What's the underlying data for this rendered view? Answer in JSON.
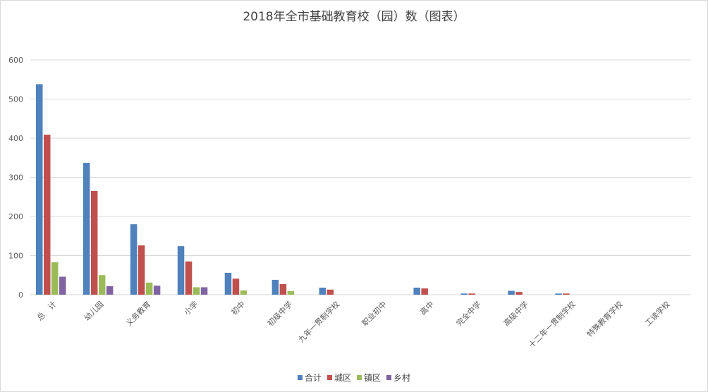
{
  "chart_data": {
    "type": "bar",
    "title": "2018年全市基础教育校（园）数（图表）",
    "xlabel": "",
    "ylabel": "",
    "ylim": [
      0,
      600
    ],
    "yticks": [
      0,
      100,
      200,
      300,
      400,
      500,
      600
    ],
    "grid": true,
    "legend_position": "bottom",
    "categories": [
      "总　计",
      "幼儿园",
      "义务教育",
      "小学",
      "初中",
      "初级中学",
      "九年一贯制学校",
      "职业初中",
      "高中",
      "完全中学",
      "高级中学",
      "十二年一贯制学校",
      "特殊教育学校",
      "工读学校"
    ],
    "series": [
      {
        "name": "合计",
        "color": "#4f81bd",
        "values": [
          538,
          337,
          180,
          124,
          56,
          38,
          18,
          0,
          18,
          3,
          10,
          3,
          0,
          0
        ]
      },
      {
        "name": "城区",
        "color": "#c0504d",
        "values": [
          409,
          265,
          126,
          85,
          41,
          27,
          13,
          0,
          16,
          3,
          7,
          3,
          0,
          0
        ]
      },
      {
        "name": "镇区",
        "color": "#9bbb59",
        "values": [
          83,
          50,
          31,
          19,
          11,
          9,
          0,
          0,
          0,
          0,
          0,
          0,
          0,
          0
        ]
      },
      {
        "name": "乡村",
        "color": "#8064a2",
        "values": [
          46,
          22,
          23,
          19,
          0,
          0,
          0,
          0,
          0,
          0,
          0,
          0,
          0,
          0
        ]
      }
    ]
  }
}
